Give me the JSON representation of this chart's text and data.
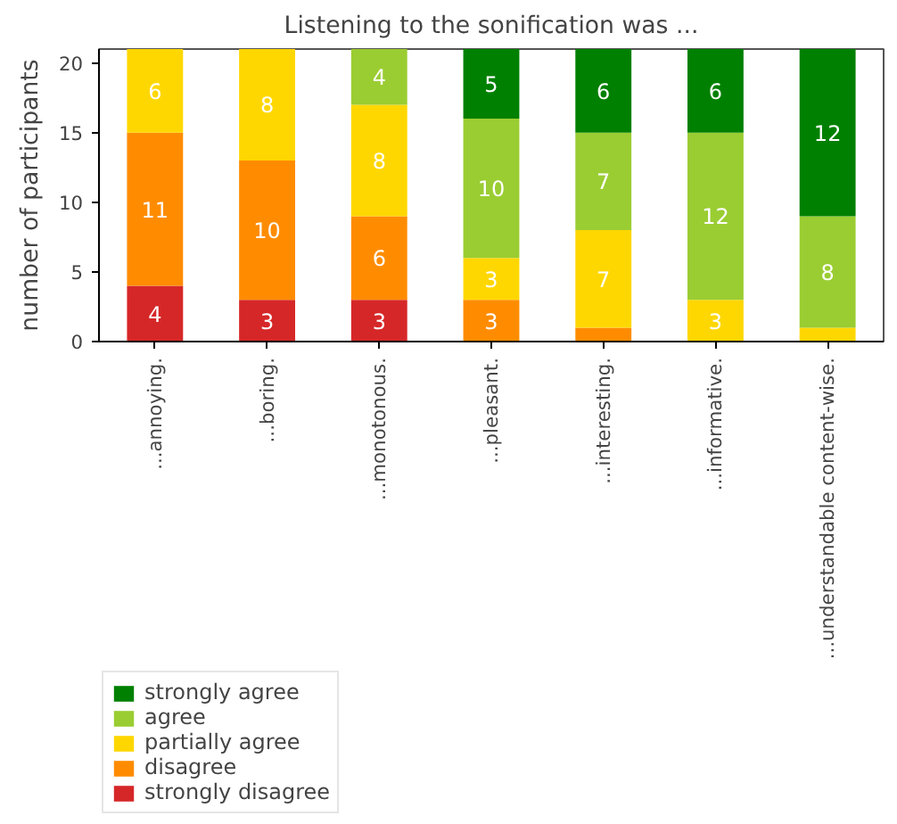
{
  "chart_data": {
    "type": "bar",
    "stacked": true,
    "title": "Listening to the sonification was ...",
    "ylabel": "number of participants",
    "categories": [
      "...annoying.",
      "...boring.",
      "...monotonous.",
      "...pleasant.",
      "...interesting.",
      "...informative.",
      "...understandable content-wise."
    ],
    "series": [
      {
        "name": "strongly disagree",
        "color": "#d62728",
        "values": [
          4,
          3,
          3,
          0,
          0,
          0,
          0
        ],
        "value_labels": [
          "4",
          "3",
          "3",
          null,
          null,
          null,
          null
        ]
      },
      {
        "name": "disagree",
        "color": "#ff8c00",
        "values": [
          11,
          10,
          6,
          3,
          1,
          0,
          0
        ],
        "value_labels": [
          "11",
          "10",
          "6",
          "3",
          null,
          null,
          null
        ]
      },
      {
        "name": "partially agree",
        "color": "#ffd700",
        "values": [
          6,
          8,
          8,
          3,
          7,
          3,
          1
        ],
        "value_labels": [
          "6",
          "8",
          "8",
          "3",
          "7",
          "3",
          null
        ]
      },
      {
        "name": "agree",
        "color": "#9acd32",
        "values": [
          0,
          0,
          4,
          10,
          7,
          12,
          8
        ],
        "value_labels": [
          null,
          null,
          "4",
          "10",
          "7",
          "12",
          "8"
        ]
      },
      {
        "name": "strongly agree",
        "color": "#008000",
        "values": [
          0,
          0,
          0,
          5,
          6,
          6,
          12
        ],
        "value_labels": [
          null,
          null,
          null,
          "5",
          "6",
          "6",
          "12"
        ]
      }
    ],
    "ylim": [
      0,
      21
    ],
    "yticks": [
      0,
      5,
      10,
      15,
      20
    ],
    "grid": false,
    "legend": "bottom left"
  }
}
